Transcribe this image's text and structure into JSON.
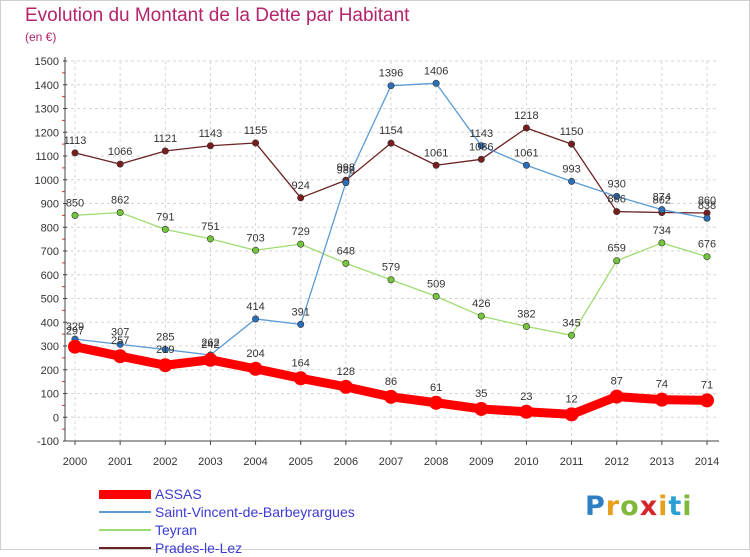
{
  "title": "Evolution du Montant de la Dette par Habitant",
  "subtitle": "(en €)",
  "brand": {
    "letters": [
      "P",
      "r",
      "o",
      "x",
      "i",
      "t",
      "i"
    ],
    "colors": [
      "#2b7fc2",
      "#e8a020",
      "#7fb83a",
      "#d6252a",
      "#e8a020",
      "#2b9fd6",
      "#7fb83a"
    ]
  },
  "chart_data": {
    "type": "line",
    "x": [
      "2000",
      "2001",
      "2002",
      "2003",
      "2004",
      "2005",
      "2006",
      "2007",
      "2008",
      "2009",
      "2010",
      "2011",
      "2012",
      "2013",
      "2014"
    ],
    "ylim": [
      -100,
      1500
    ],
    "yticks": [
      "-100",
      "0",
      "100",
      "200",
      "300",
      "400",
      "500",
      "600",
      "700",
      "800",
      "900",
      "1000",
      "1100",
      "1200",
      "1300",
      "1400",
      "1500"
    ],
    "grid": true,
    "legend_position": "bottom-left",
    "series": [
      {
        "name": "ASSAS",
        "color": "#ff0000",
        "point_color": "#ff0000",
        "values": [
          297,
          257,
          219,
          242,
          204,
          164,
          128,
          86,
          61,
          35,
          23,
          12,
          87,
          74,
          71
        ],
        "labels": [
          "297",
          "257",
          "219",
          "242",
          "204",
          "164",
          "128",
          "86",
          "61",
          "35",
          "23",
          "12",
          "87",
          "74",
          "71"
        ]
      },
      {
        "name": "Saint-Vincent-de-Barbeyrargues",
        "color": "#5a9bd5",
        "point_color": "#2a6fb8",
        "values": [
          329,
          307,
          285,
          262,
          414,
          391,
          988,
          1396,
          1406,
          1143,
          1061,
          993,
          930,
          874,
          838
        ],
        "labels": [
          "329",
          "307",
          "285",
          "262",
          "414",
          "391",
          "988",
          "1396",
          "1406",
          "1143",
          "1061",
          "993",
          "930",
          "874",
          "838"
        ]
      },
      {
        "name": "Teyran",
        "color": "#9edc70",
        "point_color": "#74c43c",
        "values": [
          850,
          862,
          791,
          751,
          703,
          729,
          648,
          579,
          509,
          426,
          382,
          345,
          659,
          734,
          676
        ],
        "labels": [
          "850",
          "862",
          "791",
          "751",
          "703",
          "729",
          "648",
          "579",
          "509",
          "426",
          "382",
          "345",
          "659",
          "734",
          "676"
        ]
      },
      {
        "name": "Prades-le-Lez",
        "color": "#6b2222",
        "point_color": "#7a1d1d",
        "values": [
          1113,
          1066,
          1121,
          1143,
          1155,
          924,
          998,
          1154,
          1061,
          1086,
          1218,
          1150,
          866,
          862,
          860
        ],
        "labels": [
          "1113",
          "1066",
          "1121",
          "1143",
          "1155",
          "924",
          "998",
          "1154",
          "1061",
          "1086",
          "1218",
          "1150",
          "866",
          "862",
          "860"
        ]
      }
    ]
  }
}
